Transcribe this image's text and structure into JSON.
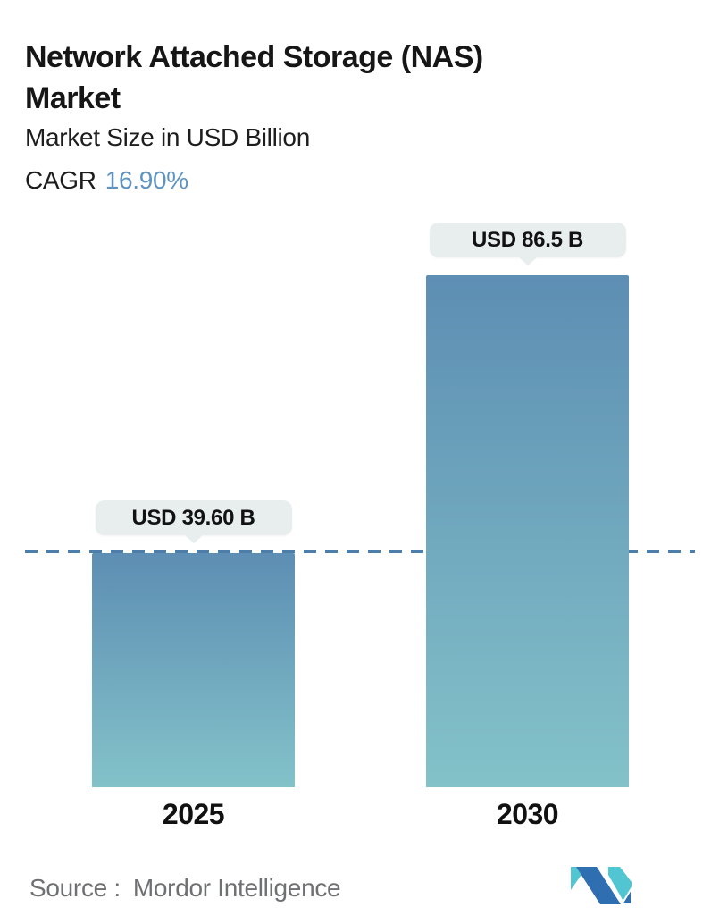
{
  "header": {
    "title": "Network Attached Storage (NAS) Market",
    "subtitle": "Market Size in USD Billion",
    "cagr_label": "CAGR",
    "cagr_value": "16.90%"
  },
  "chart_data": {
    "type": "bar",
    "title": "Network Attached Storage (NAS) Market",
    "ylabel": "Market Size in USD Billion",
    "cagr": "16.90%",
    "categories": [
      "2025",
      "2030"
    ],
    "values": [
      39.6,
      86.5
    ],
    "value_labels": [
      "USD 39.60 B",
      "USD 86.5 B"
    ],
    "baseline_value": 39.6,
    "ylim": [
      0,
      86.5
    ],
    "grid": false,
    "legend": false,
    "bar_gradient_top": "#5d8eb3",
    "bar_gradient_bottom": "#83c2c9",
    "dashed_line_color": "#4c7ea9",
    "tooltip_bg": "#e8edee"
  },
  "footer": {
    "source_label": "Source :",
    "source_value": "Mordor Intelligence",
    "logo_name": "mordor-intelligence-logo",
    "logo_blue": "#2f6eb0",
    "logo_teal": "#52c5d2"
  },
  "colors": {
    "accent_blue": "#5f94c2",
    "title_color": "#161616",
    "source_gray": "#6f7072",
    "background": "#ffffff"
  }
}
